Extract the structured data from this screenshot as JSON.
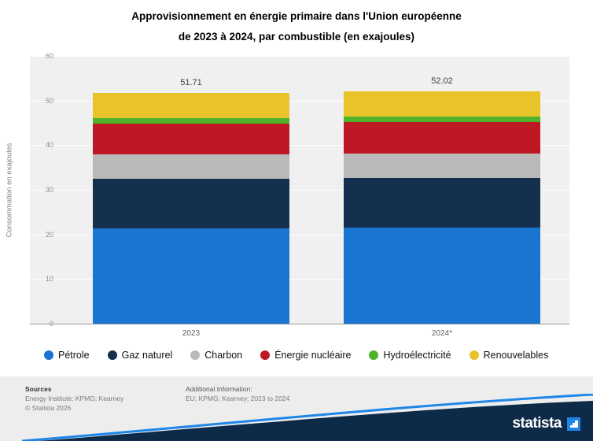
{
  "title": {
    "line1": "Approvisionnement en énergie primaire dans l'Union européenne",
    "line2": "de 2023 à 2024, par combustible (en exajoules)"
  },
  "y_axis": {
    "label": "Consommation en exajoules",
    "ticks": [
      0,
      10,
      20,
      30,
      40,
      50,
      60
    ],
    "max": 60
  },
  "chart_data": {
    "type": "bar",
    "stacked": true,
    "title": "Approvisionnement en énergie primaire dans l'Union européenne de 2023 à 2024, par combustible (en exajoules)",
    "xlabel": "",
    "ylabel": "Consommation en exajoules",
    "ylim": [
      0,
      60
    ],
    "grid": true,
    "legend_position": "bottom",
    "categories": [
      "2023",
      "2024*"
    ],
    "totals": [
      "51.71",
      "52.02"
    ],
    "series": [
      {
        "name": "Pétrole",
        "color": "#1a75d2",
        "values": [
          21.4,
          21.5
        ]
      },
      {
        "name": "Gaz naturel",
        "color": "#15304e",
        "values": [
          11.1,
          11.1
        ]
      },
      {
        "name": "Charbon",
        "color": "#b9b9b9",
        "values": [
          5.5,
          5.5
        ]
      },
      {
        "name": "Énergie nucléaire",
        "color": "#bd1823",
        "values": [
          6.9,
          7.1
        ]
      },
      {
        "name": "Hydroélectricité",
        "color": "#50b22a",
        "values": [
          1.2,
          1.2
        ]
      },
      {
        "name": "Renouvelables",
        "color": "#e9c32a",
        "values": [
          5.61,
          5.62
        ]
      }
    ]
  },
  "footer": {
    "sources_heading": "Sources",
    "sources_line1": "Energy Institute; KPMG; Kearney",
    "copyright": "© Statista 2026",
    "additional_heading": "Additional Information:",
    "additional_line1": "EU; KPMG; Kearney; 2023 to 2024",
    "brand": "statista"
  },
  "colors": {
    "plot_background": "#f0f0f0",
    "footer_background": "#ededed",
    "brand_navy": "#0d2a49",
    "brand_blue": "#1e86e8"
  }
}
